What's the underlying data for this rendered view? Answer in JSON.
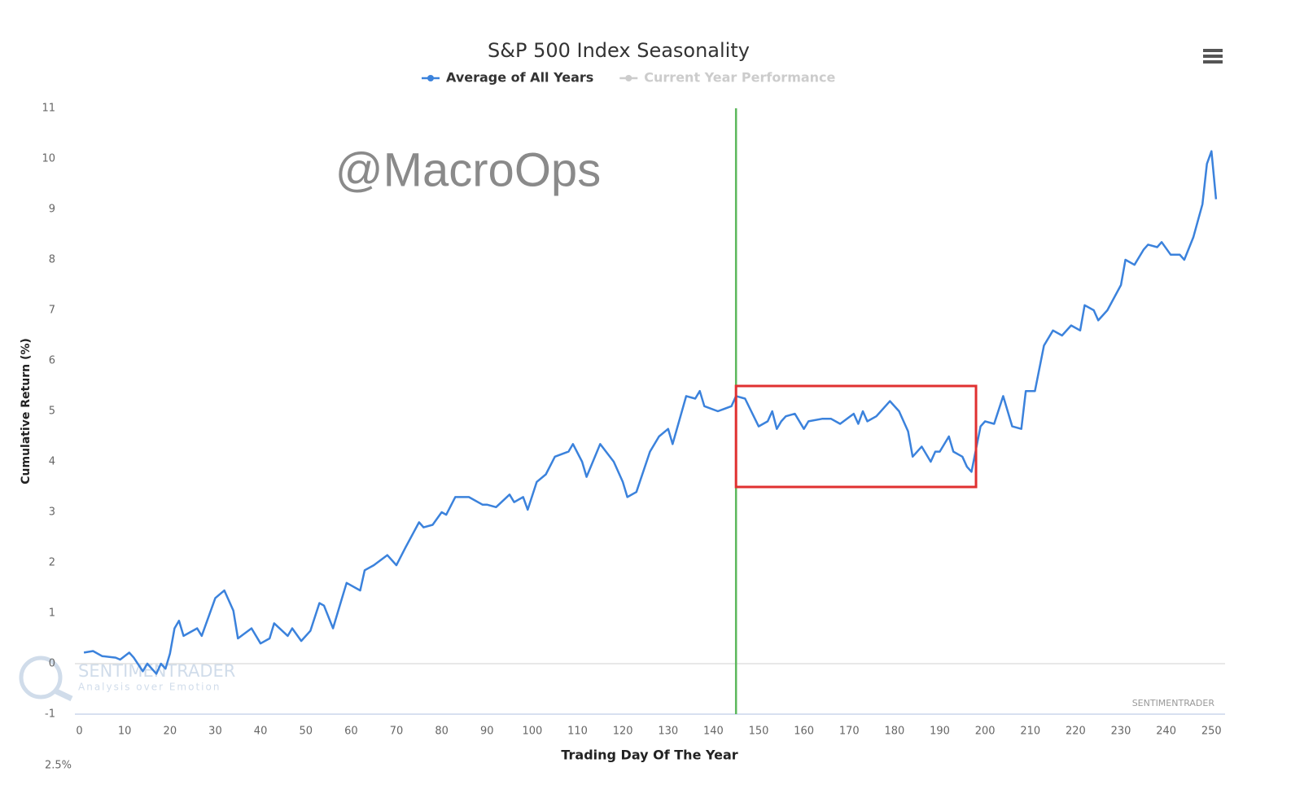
{
  "chart_data": {
    "type": "line",
    "title": "S&P 500 Index Seasonality",
    "xlabel": "Trading Day Of The Year",
    "ylabel": "Cumulative Return (%)",
    "watermark": "@MacroOps",
    "credits": "SENTIMENTRADER",
    "logo": {
      "name": "SENTIMENTRADER",
      "tagline": "Analysis over Emotion"
    },
    "footer_label": "2.5%",
    "x": [
      1,
      3,
      5,
      8,
      9,
      11,
      12,
      14,
      15,
      17,
      18,
      19,
      20,
      21,
      22,
      23,
      26,
      27,
      30,
      32,
      34,
      35,
      38,
      40,
      42,
      43,
      46,
      47,
      49,
      51,
      53,
      54,
      56,
      58,
      59,
      62,
      63,
      65,
      68,
      70,
      72,
      75,
      76,
      78,
      80,
      81,
      83,
      86,
      89,
      90,
      92,
      95,
      96,
      98,
      99,
      101,
      103,
      105,
      108,
      109,
      111,
      112,
      115,
      118,
      120,
      121,
      123,
      126,
      128,
      130,
      131,
      134,
      136,
      137,
      138,
      141,
      144,
      145,
      147,
      150,
      152,
      153,
      154,
      155,
      156,
      158,
      160,
      161,
      164,
      166,
      168,
      171,
      172,
      173,
      174,
      176,
      179,
      181,
      183,
      184,
      186,
      188,
      189,
      190,
      192,
      193,
      195,
      196,
      197,
      199,
      200,
      202,
      204,
      206,
      208,
      209,
      211,
      213,
      215,
      217,
      219,
      221,
      222,
      224,
      225,
      227,
      230,
      231,
      233,
      235,
      236,
      238,
      239,
      241,
      243,
      244,
      246,
      248,
      249,
      250,
      251
    ],
    "series": [
      {
        "name": "Average of All Years",
        "color": "#3b82dc",
        "visible": true,
        "values": [
          0.22,
          0.25,
          0.15,
          0.12,
          0.08,
          0.22,
          0.12,
          -0.15,
          0.0,
          -0.2,
          0.0,
          -0.1,
          0.2,
          0.7,
          0.85,
          0.55,
          0.7,
          0.55,
          1.3,
          1.45,
          1.05,
          0.5,
          0.7,
          0.4,
          0.5,
          0.8,
          0.55,
          0.7,
          0.45,
          0.65,
          1.2,
          1.15,
          0.7,
          1.3,
          1.6,
          1.45,
          1.85,
          1.95,
          2.15,
          1.95,
          2.3,
          2.8,
          2.7,
          2.75,
          3.0,
          2.95,
          3.3,
          3.3,
          3.15,
          3.15,
          3.1,
          3.35,
          3.2,
          3.3,
          3.05,
          3.6,
          3.75,
          4.1,
          4.2,
          4.35,
          4.0,
          3.7,
          4.35,
          4.0,
          3.6,
          3.3,
          3.4,
          4.2,
          4.5,
          4.65,
          4.35,
          5.3,
          5.25,
          5.4,
          5.1,
          5.0,
          5.1,
          5.3,
          5.25,
          4.7,
          4.8,
          5.0,
          4.65,
          4.8,
          4.9,
          4.95,
          4.65,
          4.8,
          4.85,
          4.85,
          4.75,
          4.95,
          4.75,
          5.0,
          4.8,
          4.9,
          5.2,
          5.0,
          4.6,
          4.1,
          4.3,
          4.0,
          4.2,
          4.2,
          4.5,
          4.2,
          4.1,
          3.9,
          3.8,
          4.7,
          4.8,
          4.75,
          5.3,
          4.7,
          4.65,
          5.4,
          5.4,
          6.3,
          6.6,
          6.5,
          6.7,
          6.6,
          7.1,
          7.0,
          6.8,
          7.0,
          7.5,
          8.0,
          7.9,
          8.2,
          8.3,
          8.25,
          8.35,
          8.1,
          8.1,
          8.0,
          8.45,
          9.1,
          9.9,
          10.15,
          9.2
        ]
      },
      {
        "name": "Current Year Performance",
        "color": "#cccccc",
        "visible": false
      }
    ],
    "xlim": [
      -1,
      253
    ],
    "ylim": [
      -1,
      11
    ],
    "xticks": [
      0,
      10,
      20,
      30,
      40,
      50,
      60,
      70,
      80,
      90,
      100,
      110,
      120,
      130,
      140,
      150,
      160,
      170,
      180,
      190,
      200,
      210,
      220,
      230,
      240,
      250
    ],
    "yticks": [
      -1,
      0,
      1,
      2,
      3,
      4,
      5,
      6,
      7,
      8,
      9,
      10,
      11
    ],
    "grid": false,
    "zero_line": true,
    "vertical_line": {
      "x": 145,
      "color": "#5cb85c"
    },
    "highlight_box": {
      "x": [
        145,
        198
      ],
      "y": [
        3.5,
        5.5
      ],
      "color": "#e03030"
    }
  }
}
